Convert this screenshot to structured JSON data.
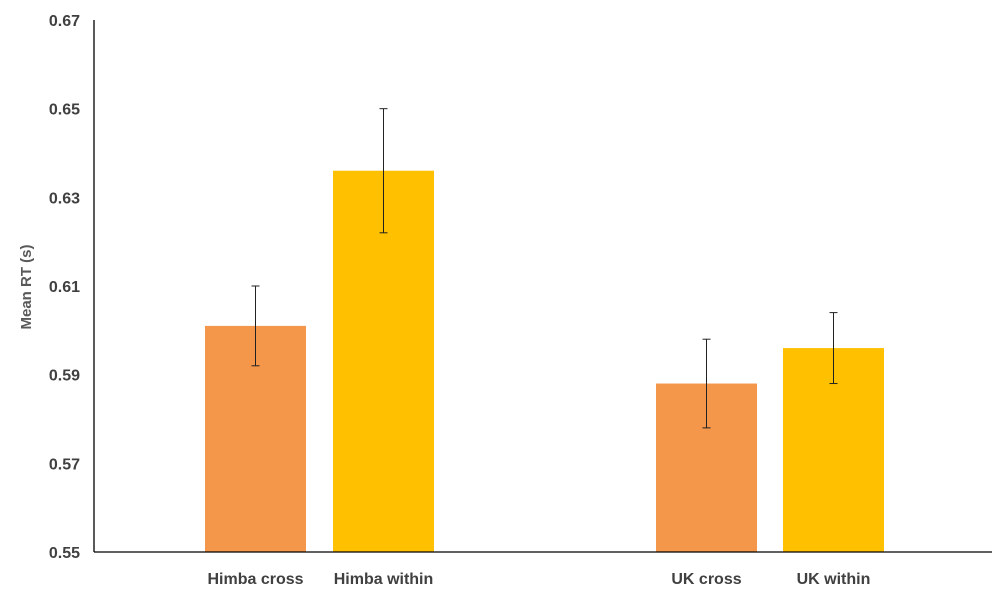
{
  "chart_data": {
    "type": "bar",
    "title": "",
    "xlabel": "",
    "ylabel": "Mean RT (s)",
    "ylim": [
      0.55,
      0.67
    ],
    "yticks": [
      0.55,
      0.57,
      0.59,
      0.61,
      0.63,
      0.65,
      0.67
    ],
    "ytick_labels": [
      "0.55",
      "0.57",
      "0.59",
      "0.61",
      "0.63",
      "0.65",
      "0.67"
    ],
    "grid": false,
    "legend": "none",
    "bars": [
      {
        "label": "Himba cross",
        "value": 0.601,
        "error_low": 0.592,
        "error_high": 0.61,
        "color": "#F4974B"
      },
      {
        "label": "Himba within",
        "value": 0.636,
        "error_low": 0.622,
        "error_high": 0.65,
        "color": "#FFC000"
      },
      {
        "label": "UK cross",
        "value": 0.588,
        "error_low": 0.578,
        "error_high": 0.598,
        "color": "#F4974B"
      },
      {
        "label": "UK within",
        "value": 0.596,
        "error_low": 0.588,
        "error_high": 0.604,
        "color": "#FFC000"
      }
    ]
  }
}
